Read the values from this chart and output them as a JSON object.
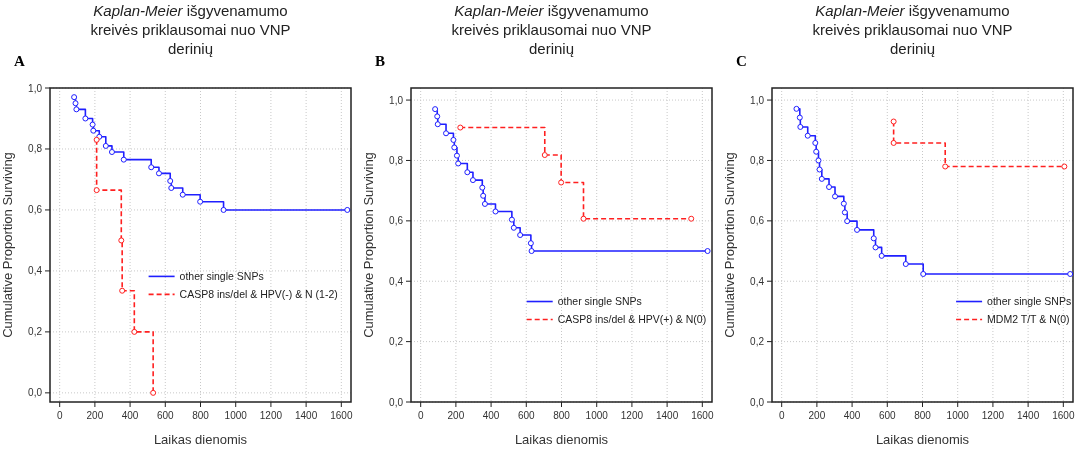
{
  "chart_data": [
    {
      "type": "step",
      "title": "Kaplan-Meier išgyvenamumo kreivės priklausomai nuo VNP derinių",
      "xlabel": "Laikas dienomis",
      "ylabel": "Cumulative Proportion Surviving",
      "annotations": [
        "A"
      ],
      "xlim": [
        -55,
        1655
      ],
      "ylim": [
        -0.03,
        1.0
      ],
      "xticks": [
        0,
        200,
        400,
        600,
        800,
        1000,
        1200,
        1400,
        1600
      ],
      "yticks": [
        {
          "value": 0,
          "label": "0,0"
        },
        {
          "value": 0.2,
          "label": "0,2"
        },
        {
          "value": 0.4,
          "label": "0,4"
        },
        {
          "value": 0.6,
          "label": "0,6"
        },
        {
          "value": 0.8,
          "label": "0,8"
        },
        {
          "value": 1,
          "label": "1,0"
        }
      ],
      "grid": true,
      "legend": "right",
      "marker": "circle",
      "series": [
        {
          "name": "other single SNPs",
          "color": "#1f1fff",
          "line_style": "solid",
          "x": [
            82,
            90,
            95,
            146,
            187,
            191,
            225,
            262,
            297,
            364,
            520,
            564,
            628,
            634,
            699,
            798,
            931,
            1634
          ],
          "values": [
            0.97,
            0.95,
            0.93,
            0.9,
            0.88,
            0.86,
            0.84,
            0.81,
            0.79,
            0.765,
            0.74,
            0.72,
            0.695,
            0.672,
            0.65,
            0.627,
            0.6,
            0.6
          ]
        },
        {
          "name": "CASP8 ins/del & HPV(-) & N (1-2)",
          "color": "#ff2020",
          "line_style": "dashed",
          "x": [
            210,
            210,
            350,
            355,
            424,
            531
          ],
          "values": [
            0.83,
            0.665,
            0.5,
            0.335,
            0.2,
            0
          ]
        }
      ]
    },
    {
      "type": "step",
      "title": "Kaplan-Meier išgyvenamumo kreivės priklausomai nuo VNP derinių",
      "xlabel": "Laikas dienomis",
      "ylabel": "Cumulative Proportion Surviving",
      "annotations": [
        "B"
      ],
      "xlim": [
        -55,
        1655
      ],
      "ylim": [
        0,
        1.04
      ],
      "xticks": [
        0,
        200,
        400,
        600,
        800,
        1000,
        1200,
        1400,
        1600
      ],
      "yticks": [
        {
          "value": 0,
          "label": "0,0"
        },
        {
          "value": 0.2,
          "label": "0,2"
        },
        {
          "value": 0.4,
          "label": "0,4"
        },
        {
          "value": 0.6,
          "label": "0,6"
        },
        {
          "value": 0.8,
          "label": "0,8"
        },
        {
          "value": 1,
          "label": "1,0"
        }
      ],
      "grid": true,
      "legend": "bottom right",
      "marker": "circle",
      "series": [
        {
          "name": "other single SNPs",
          "color": "#1f1fff",
          "line_style": "solid",
          "x": [
            82,
            94,
            97,
            144,
            186,
            191,
            206,
            213,
            265,
            297,
            350,
            355,
            365,
            425,
            518,
            529,
            565,
            626,
            630,
            1630
          ],
          "values": [
            0.97,
            0.946,
            0.92,
            0.89,
            0.868,
            0.843,
            0.816,
            0.79,
            0.761,
            0.735,
            0.71,
            0.683,
            0.656,
            0.631,
            0.604,
            0.577,
            0.553,
            0.526,
            0.5,
            0.5
          ]
        },
        {
          "name": "CASP8 ins/del & HPV(+) & N(0)",
          "color": "#ff2020",
          "line_style": "dashed",
          "x": [
            225,
            705,
            798,
            925,
            1537
          ],
          "values": [
            0.909,
            0.818,
            0.727,
            0.607,
            0.607
          ]
        }
      ]
    },
    {
      "type": "step",
      "title": "Kaplan-Meier išgyvenamumo kreivės priklausomai nuo VNP derinių",
      "xlabel": "Laikas dienomis",
      "ylabel": "Cumulative Proportion Surviving",
      "annotations": [
        "C"
      ],
      "xlim": [
        -55,
        1655
      ],
      "ylim": [
        0,
        1.04
      ],
      "xticks": [
        0,
        200,
        400,
        600,
        800,
        1000,
        1200,
        1400,
        1600
      ],
      "yticks": [
        {
          "value": 0,
          "label": "0,0"
        },
        {
          "value": 0.2,
          "label": "0,2"
        },
        {
          "value": 0.4,
          "label": "0,4"
        },
        {
          "value": 0.6,
          "label": "0,6"
        },
        {
          "value": 0.8,
          "label": "0,8"
        },
        {
          "value": 1,
          "label": "1,0"
        }
      ],
      "grid": true,
      "legend": "bottom right",
      "marker": "circle",
      "series": [
        {
          "name": "other single SNPs",
          "color": "#1f1fff",
          "line_style": "solid",
          "x": [
            84,
            103,
            106,
            148,
            191,
            196,
            209,
            215,
            228,
            269,
            303,
            353,
            359,
            372,
            428,
            523,
            533,
            568,
            705,
            804,
            1639
          ],
          "values": [
            0.971,
            0.942,
            0.911,
            0.882,
            0.858,
            0.829,
            0.8,
            0.77,
            0.739,
            0.712,
            0.681,
            0.657,
            0.628,
            0.599,
            0.57,
            0.542,
            0.512,
            0.484,
            0.457,
            0.424,
            0.424
          ]
        },
        {
          "name": "MDM2 T/T & N(0)",
          "color": "#ff2020",
          "line_style": "dashed",
          "x": [
            636,
            636,
            929,
            1606
          ],
          "values": [
            0.929,
            0.858,
            0.78,
            0.78
          ]
        }
      ]
    }
  ]
}
